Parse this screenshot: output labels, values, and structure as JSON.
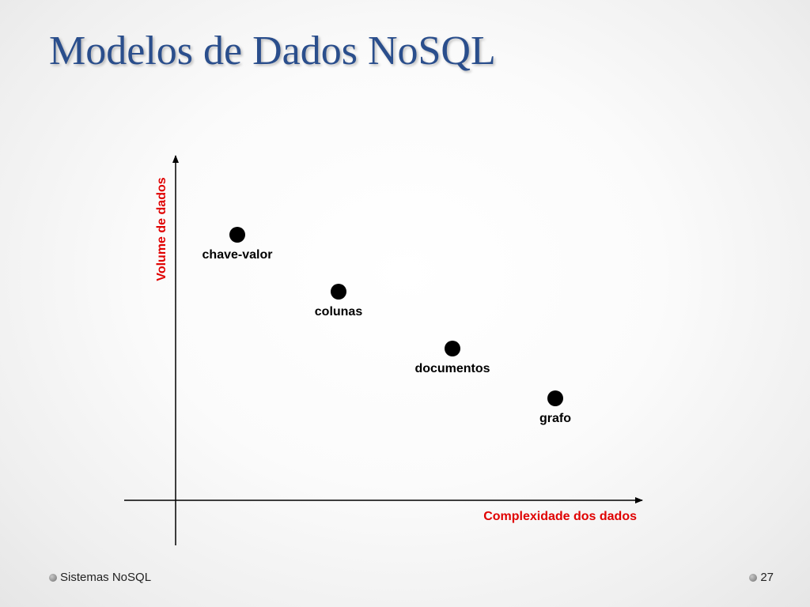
{
  "slide": {
    "title": "Modelos de Dados NoSQL"
  },
  "diagram": {
    "y_axis_label": "Volume de dados",
    "x_axis_label": "Complexidade dos dados",
    "points": [
      {
        "label": "chave-valor",
        "complexity_rank": 1,
        "volume_rank": 4
      },
      {
        "label": "colunas",
        "complexity_rank": 2,
        "volume_rank": 3
      },
      {
        "label": "documentos",
        "complexity_rank": 3,
        "volume_rank": 2
      },
      {
        "label": "grafo",
        "complexity_rank": 4,
        "volume_rank": 1
      }
    ],
    "axis_color": "#000000",
    "label_color": "#e00000"
  },
  "footer": {
    "left_text": "Sistemas NoSQL",
    "page_number": "27"
  },
  "colors": {
    "title": "#2a4e8c",
    "axis_labels": "#e00000",
    "bullet": "#8a8a8a"
  }
}
